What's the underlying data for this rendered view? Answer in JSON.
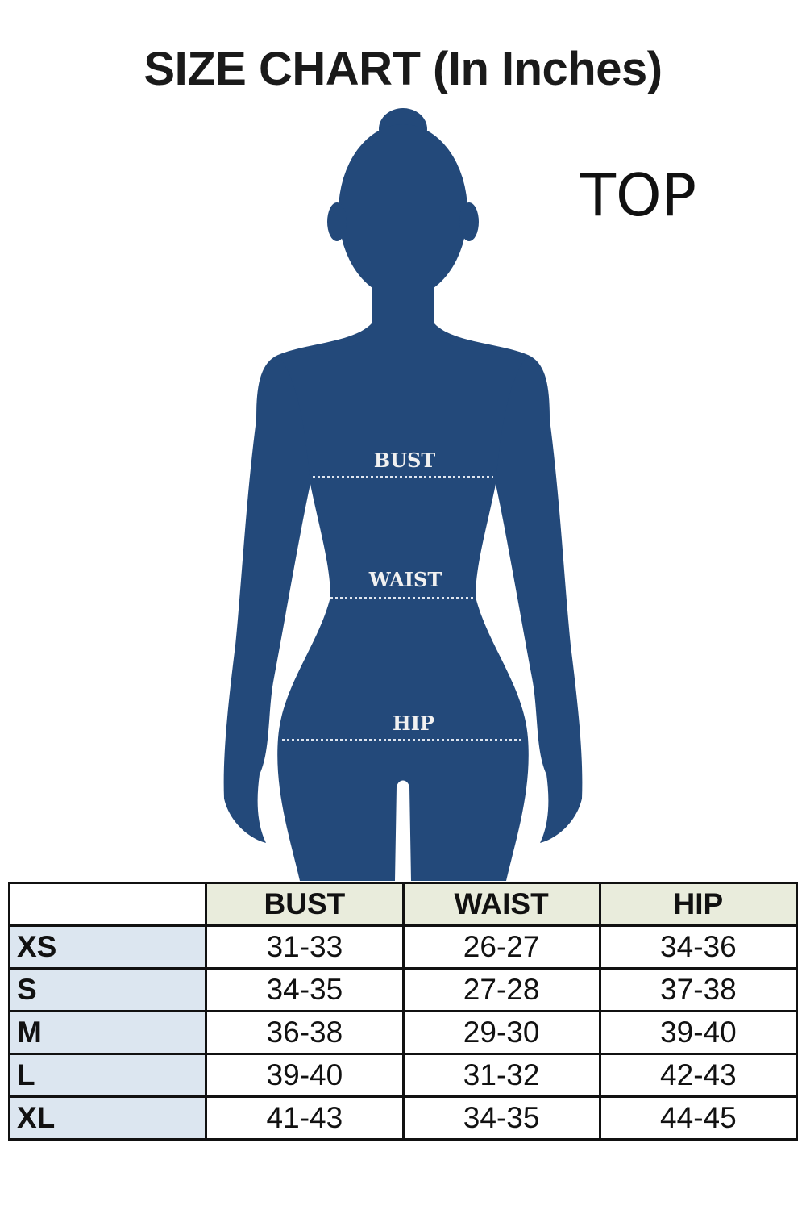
{
  "title": "SIZE CHART (In Inches)",
  "garment_label": "TOP",
  "figure": {
    "silhouette_color": "#23497a",
    "measure_labels": {
      "bust": "BUST",
      "waist": "WAIST",
      "hip": "HIP"
    }
  },
  "table": {
    "headers": [
      "",
      "BUST",
      "WAIST",
      "HIP"
    ],
    "header_fill": "#e9ecdc",
    "size_fill": "#dce6f0",
    "rows": [
      {
        "size": "XS",
        "bust": "31-33",
        "waist": "26-27",
        "hip": "34-36"
      },
      {
        "size": "S",
        "bust": "34-35",
        "waist": "27-28",
        "hip": "37-38"
      },
      {
        "size": "M",
        "bust": "36-38",
        "waist": "29-30",
        "hip": "39-40"
      },
      {
        "size": "L",
        "bust": "39-40",
        "waist": "31-32",
        "hip": "42-43"
      },
      {
        "size": "XL",
        "bust": "41-43",
        "waist": "34-35",
        "hip": "44-45"
      }
    ]
  }
}
